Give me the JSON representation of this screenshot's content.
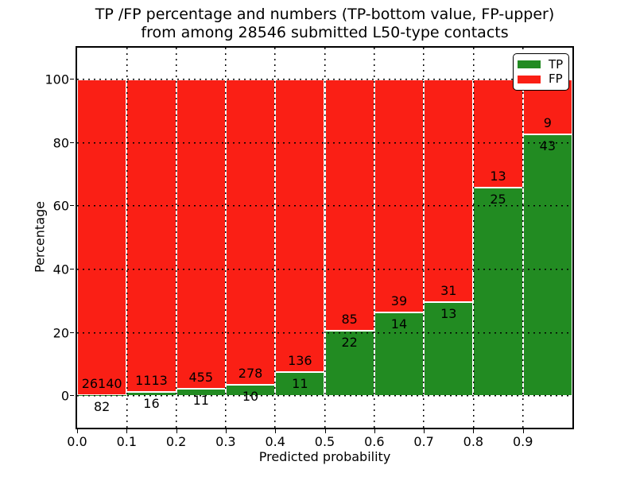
{
  "title": {
    "line1": "TP /FP percentage and numbers (TP-bottom value, FP-upper)",
    "line2": "from among 28546 submitted L50-type contacts"
  },
  "legend": {
    "tp": "TP",
    "fp": "FP",
    "position": "upper right"
  },
  "colors": {
    "tp": "#228b22",
    "fp": "#fa1f15",
    "grid": "#000000",
    "background": "#ffffff"
  },
  "chart_data": {
    "type": "bar",
    "stacked": true,
    "normalized_to_percent": true,
    "title": "TP /FP percentage and numbers (TP-bottom value, FP-upper) from among 28546 submitted L50-type contacts",
    "total_contacts": 28546,
    "xlabel": "Predicted probability",
    "ylabel": "Percentage",
    "categories": [
      "0.0",
      "0.1",
      "0.2",
      "0.3",
      "0.4",
      "0.5",
      "0.6",
      "0.7",
      "0.8",
      "0.9"
    ],
    "x_bin_width": 0.1,
    "series": [
      {
        "name": "TP",
        "color": "#228b22",
        "values": [
          82,
          16,
          11,
          10,
          11,
          22,
          14,
          13,
          25,
          43
        ]
      },
      {
        "name": "FP",
        "color": "#fa1f15",
        "values": [
          26140,
          1113,
          455,
          278,
          136,
          85,
          39,
          31,
          13,
          9
        ]
      }
    ],
    "yticks": [
      0,
      20,
      40,
      60,
      80,
      100
    ],
    "ylim": [
      -10,
      110
    ],
    "grid": "dotted",
    "legend_position": "upper right",
    "annotation_note": "TP count below segment boundary, FP count above segment boundary"
  }
}
